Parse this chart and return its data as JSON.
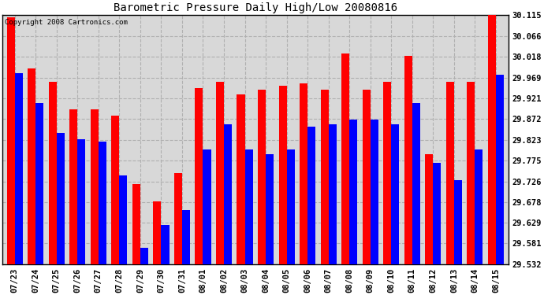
{
  "title": "Barometric Pressure Daily High/Low 20080816",
  "copyright": "Copyright 2008 Cartronics.com",
  "categories": [
    "07/23",
    "07/24",
    "07/25",
    "07/26",
    "07/27",
    "07/28",
    "07/29",
    "07/30",
    "07/31",
    "08/01",
    "08/02",
    "08/03",
    "08/04",
    "08/05",
    "08/06",
    "08/07",
    "08/08",
    "08/09",
    "08/10",
    "08/11",
    "08/12",
    "08/13",
    "08/14",
    "08/15"
  ],
  "highs": [
    30.11,
    29.99,
    29.96,
    29.895,
    29.895,
    29.88,
    29.72,
    29.68,
    29.745,
    29.945,
    29.96,
    29.93,
    29.94,
    29.95,
    29.955,
    29.94,
    30.025,
    29.94,
    29.96,
    30.02,
    29.79,
    29.96,
    29.96,
    30.14
  ],
  "lows": [
    29.98,
    29.91,
    29.84,
    29.825,
    29.82,
    29.74,
    29.57,
    29.625,
    29.66,
    29.8,
    29.86,
    29.8,
    29.79,
    29.8,
    29.855,
    29.86,
    29.87,
    29.87,
    29.86,
    29.91,
    29.77,
    29.73,
    29.8,
    29.975
  ],
  "high_color": "#ff0000",
  "low_color": "#0000ff",
  "bg_color": "#d8d8d8",
  "grid_color": "#b0b0b0",
  "yticks": [
    29.532,
    29.581,
    29.629,
    29.678,
    29.726,
    29.775,
    29.823,
    29.872,
    29.921,
    29.969,
    30.018,
    30.066,
    30.115
  ],
  "ymin": 29.532,
  "ymax": 30.115,
  "bar_width": 0.38,
  "figwidth": 6.9,
  "figheight": 3.75,
  "dpi": 100
}
